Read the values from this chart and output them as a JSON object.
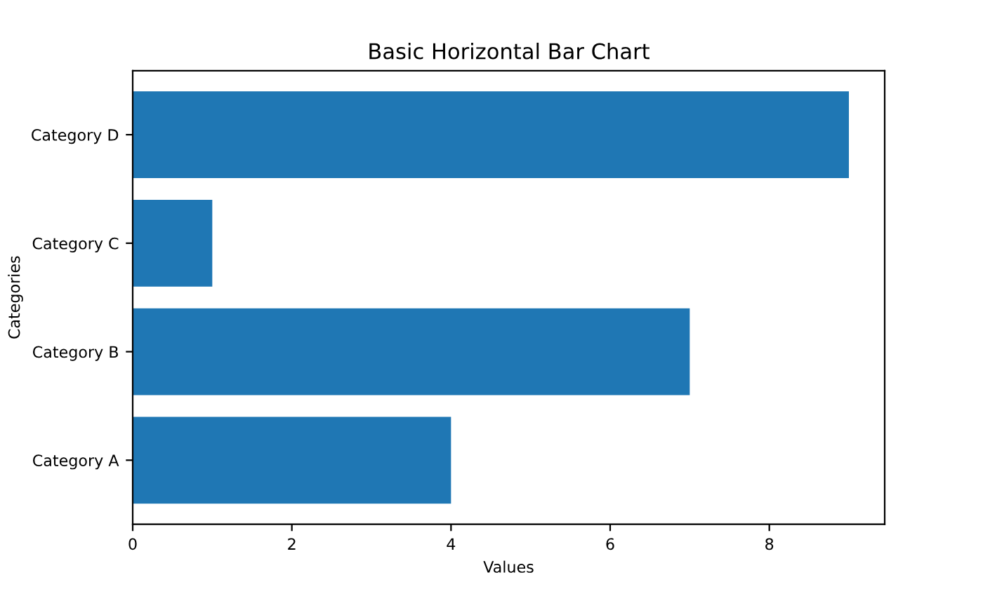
{
  "chart_data": {
    "type": "bar",
    "orientation": "horizontal",
    "title": "Basic Horizontal Bar Chart",
    "xlabel": "Values",
    "ylabel": "Categories",
    "categories": [
      "Category D",
      "Category C",
      "Category B",
      "Category A"
    ],
    "values": [
      9,
      1,
      7,
      4
    ],
    "color": "#1f77b4",
    "xlim": [
      0,
      9.45
    ],
    "xticks": [
      0,
      2,
      4,
      6,
      8
    ],
    "grid": false
  }
}
